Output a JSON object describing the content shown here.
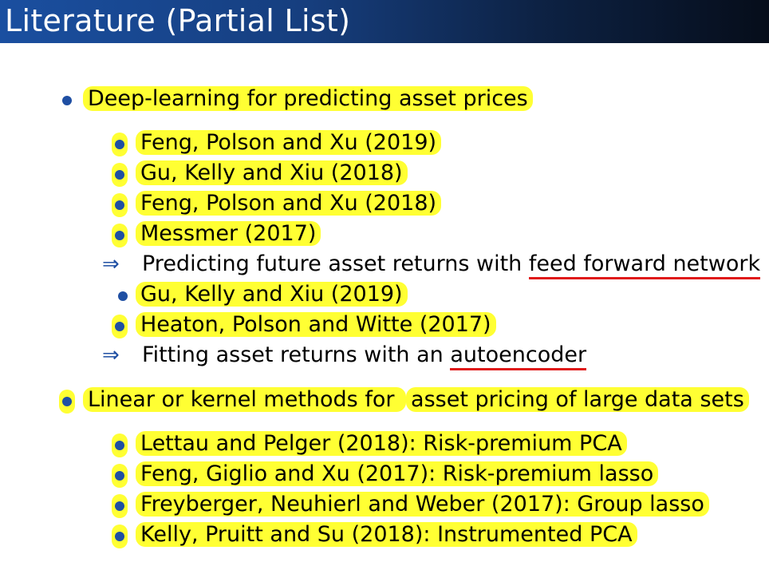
{
  "title": "Literature (Partial List)",
  "section1": {
    "heading": "Deep-learning for predicting asset prices",
    "refs_a": [
      "Feng, Polson and Xu (2019)",
      "Gu, Kelly and Xiu (2018)",
      "Feng, Polson and Xu (2018)",
      "Messmer (2017)"
    ],
    "implication_a_prefix": "Predicting future asset returns with ",
    "implication_a_term": "feed forward network",
    "refs_b": [
      "Gu, Kelly and Xiu (2019)",
      "Heaton, Polson and Witte (2017)"
    ],
    "implication_b_prefix": "Fitting asset returns with an ",
    "implication_b_term": "autoencoder"
  },
  "section2": {
    "heading_part1": "Linear or kernel methods for ",
    "heading_part2": "asset pricing of large data sets",
    "refs": [
      "Lettau and Pelger (2018): Risk-premium PCA",
      "Feng, Giglio and Xu (2017): Risk-premium lasso",
      "Freyberger, Neuhierl and Weber (2017): Group lasso",
      "Kelly, Pruitt and Su (2018): Instrumented PCA"
    ]
  },
  "colors": {
    "highlight": "#ffff33",
    "bullet": "#1f4fa3",
    "underline": "#e01a1a",
    "title_bar": "#163e7e"
  },
  "icons": {
    "bullet": "bullet-icon",
    "implies": "implies-arrow-icon"
  }
}
